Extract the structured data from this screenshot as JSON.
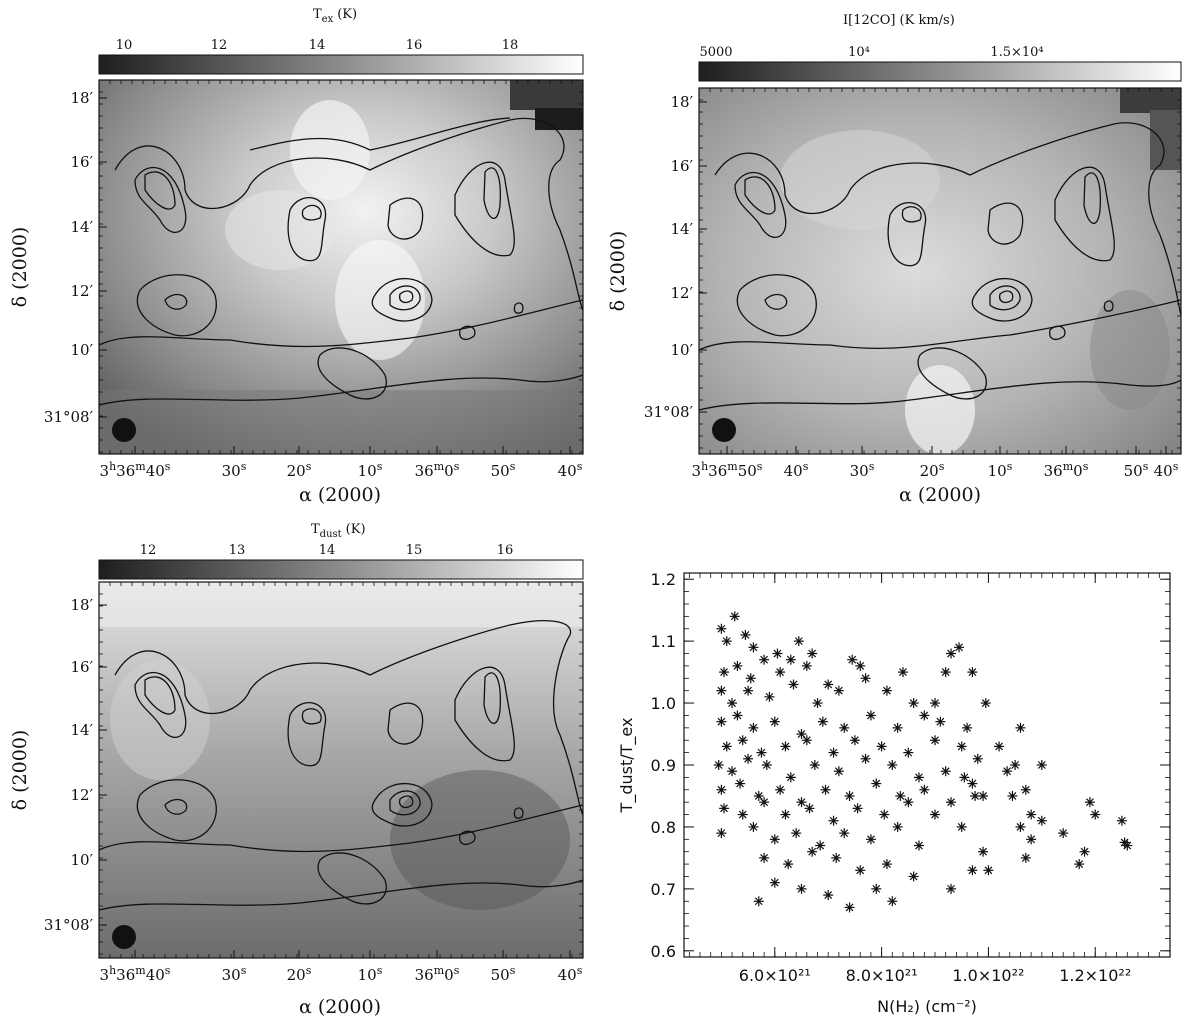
{
  "colors": {
    "ink": "#111111",
    "paper": "#ffffff",
    "map_dark": "#2a2a2a",
    "map_light": "#f4f4f4"
  },
  "panels": [
    {
      "id": "tex",
      "cbar_title": "T",
      "cbar_title_sub": "ex",
      "cbar_unit": "(K)",
      "cbar_ticks": [
        "10",
        "12",
        "14",
        "16",
        "18"
      ],
      "ra_ticks": [
        "3h36m40s",
        "30s",
        "20s",
        "10s",
        "36m0s",
        "50s",
        "40s"
      ],
      "dec_ticks": [
        "18′",
        "16′",
        "14′",
        "12′",
        "10′",
        "31°08′"
      ],
      "xlabel": "α (2000)",
      "ylabel": "δ (2000)"
    },
    {
      "id": "co",
      "cbar_title": "I[12CO] (K km/s)",
      "cbar_ticks": [
        "5000",
        "10⁴",
        "1.5×10⁴"
      ],
      "ra_ticks": [
        "3h36m50s",
        "40s",
        "30s",
        "20s",
        "10s",
        "36m0s",
        "50s",
        "40s"
      ],
      "dec_ticks": [
        "18′",
        "16′",
        "14′",
        "12′",
        "10′",
        "31°08′"
      ],
      "xlabel": "α (2000)",
      "ylabel": "δ (2000)"
    },
    {
      "id": "tdust",
      "cbar_title": "T",
      "cbar_title_sub": "dust",
      "cbar_unit": "(K)",
      "cbar_ticks": [
        "12",
        "13",
        "14",
        "15",
        "16"
      ],
      "ra_ticks": [
        "3h36m40s",
        "30s",
        "20s",
        "10s",
        "36m0s",
        "50s",
        "40s"
      ],
      "dec_ticks": [
        "18′",
        "16′",
        "14′",
        "12′",
        "10′",
        "31°08′"
      ],
      "xlabel": "α (2000)",
      "ylabel": "δ (2000)"
    }
  ],
  "chart_data": {
    "type": "scatter",
    "xlabel": "N(H₂) (cm⁻²)",
    "ylabel": "T_dust/T_ex",
    "xlim": [
      4.3e+21,
      1.34e+22
    ],
    "ylim": [
      0.59,
      1.21
    ],
    "x_tick_values": [
      6e+21,
      8e+21,
      1e+22,
      1.2e+22
    ],
    "x_tick_labels": [
      "6.0×10²¹",
      "8.0×10²¹",
      "1.0×10²²",
      "1.2×10²²"
    ],
    "y_tick_values": [
      0.6,
      0.7,
      0.8,
      0.9,
      1.0,
      1.1,
      1.2
    ],
    "y_tick_labels": [
      "0.6",
      "0.7",
      "0.8",
      "0.9",
      "1.0",
      "1.1",
      "1.2"
    ],
    "marker": "asterisk",
    "points": [
      [
        5e+21,
        1.12
      ],
      [
        5.25e+21,
        1.14
      ],
      [
        5.1e+21,
        1.1
      ],
      [
        5.45e+21,
        1.11
      ],
      [
        5.6e+21,
        1.09
      ],
      [
        6.05e+21,
        1.08
      ],
      [
        6.3e+21,
        1.07
      ],
      [
        6.45e+21,
        1.1
      ],
      [
        6.7e+21,
        1.08
      ],
      [
        5.05e+21,
        1.05
      ],
      [
        5.3e+21,
        1.06
      ],
      [
        5.55e+21,
        1.04
      ],
      [
        5.8e+21,
        1.07
      ],
      [
        6.1e+21,
        1.05
      ],
      [
        6.6e+21,
        1.06
      ],
      [
        7e+21,
        1.03
      ],
      [
        7.45e+21,
        1.07
      ],
      [
        7.6e+21,
        1.06
      ],
      [
        5e+21,
        1.02
      ],
      [
        5.2e+21,
        1.0
      ],
      [
        5.5e+21,
        1.02
      ],
      [
        5.9e+21,
        1.01
      ],
      [
        6.35e+21,
        1.03
      ],
      [
        6.8e+21,
        1.0
      ],
      [
        7.2e+21,
        1.02
      ],
      [
        7.7e+21,
        1.04
      ],
      [
        8.1e+21,
        1.02
      ],
      [
        8.6e+21,
        1.0
      ],
      [
        9e+21,
        1.0
      ],
      [
        9.3e+21,
        1.08
      ],
      [
        9.45e+21,
        1.09
      ],
      [
        9.2e+21,
        1.05
      ],
      [
        9.7e+21,
        1.05
      ],
      [
        9.6e+21,
        0.96
      ],
      [
        9.95e+21,
        1.0
      ],
      [
        8.4e+21,
        1.05
      ],
      [
        5e+21,
        0.97
      ],
      [
        5.3e+21,
        0.98
      ],
      [
        5.6e+21,
        0.96
      ],
      [
        6e+21,
        0.97
      ],
      [
        6.5e+21,
        0.95
      ],
      [
        6.9e+21,
        0.97
      ],
      [
        7.3e+21,
        0.96
      ],
      [
        7.8e+21,
        0.98
      ],
      [
        8.3e+21,
        0.96
      ],
      [
        8.8e+21,
        0.98
      ],
      [
        9.1e+21,
        0.97
      ],
      [
        5.1e+21,
        0.93
      ],
      [
        5.4e+21,
        0.94
      ],
      [
        5.75e+21,
        0.92
      ],
      [
        6.2e+21,
        0.93
      ],
      [
        6.6e+21,
        0.94
      ],
      [
        7.1e+21,
        0.92
      ],
      [
        7.5e+21,
        0.94
      ],
      [
        8e+21,
        0.93
      ],
      [
        8.5e+21,
        0.92
      ],
      [
        9e+21,
        0.94
      ],
      [
        9.5e+21,
        0.93
      ],
      [
        9.8e+21,
        0.91
      ],
      [
        4.95e+21,
        0.9
      ],
      [
        5.2e+21,
        0.89
      ],
      [
        5.5e+21,
        0.91
      ],
      [
        5.85e+21,
        0.9
      ],
      [
        6.3e+21,
        0.88
      ],
      [
        6.75e+21,
        0.9
      ],
      [
        7.2e+21,
        0.89
      ],
      [
        7.7e+21,
        0.91
      ],
      [
        8.2e+21,
        0.9
      ],
      [
        8.7e+21,
        0.88
      ],
      [
        9.2e+21,
        0.89
      ],
      [
        9.7e+21,
        0.87
      ],
      [
        5e+21,
        0.86
      ],
      [
        5.35e+21,
        0.87
      ],
      [
        5.7e+21,
        0.85
      ],
      [
        6.1e+21,
        0.86
      ],
      [
        6.5e+21,
        0.84
      ],
      [
        6.95e+21,
        0.86
      ],
      [
        7.4e+21,
        0.85
      ],
      [
        7.9e+21,
        0.87
      ],
      [
        8.35e+21,
        0.85
      ],
      [
        8.8e+21,
        0.86
      ],
      [
        9.3e+21,
        0.84
      ],
      [
        9.9e+21,
        0.85
      ],
      [
        5.05e+21,
        0.83
      ],
      [
        5.4e+21,
        0.82
      ],
      [
        5.8e+21,
        0.84
      ],
      [
        6.2e+21,
        0.82
      ],
      [
        6.65e+21,
        0.83
      ],
      [
        7.1e+21,
        0.81
      ],
      [
        7.55e+21,
        0.83
      ],
      [
        8.05e+21,
        0.82
      ],
      [
        8.5e+21,
        0.84
      ],
      [
        9e+21,
        0.82
      ],
      [
        9.5e+21,
        0.8
      ],
      [
        5e+21,
        0.79
      ],
      [
        5.6e+21,
        0.8
      ],
      [
        6e+21,
        0.78
      ],
      [
        6.4e+21,
        0.79
      ],
      [
        6.85e+21,
        0.77
      ],
      [
        7.3e+21,
        0.79
      ],
      [
        7.8e+21,
        0.78
      ],
      [
        8.3e+21,
        0.8
      ],
      [
        8.7e+21,
        0.77
      ],
      [
        5.8e+21,
        0.75
      ],
      [
        6.25e+21,
        0.74
      ],
      [
        6.7e+21,
        0.76
      ],
      [
        7.15e+21,
        0.75
      ],
      [
        7.6e+21,
        0.73
      ],
      [
        8.1e+21,
        0.74
      ],
      [
        5.7e+21,
        0.68
      ],
      [
        6e+21,
        0.71
      ],
      [
        6.5e+21,
        0.7
      ],
      [
        7e+21,
        0.69
      ],
      [
        7.4e+21,
        0.67
      ],
      [
        7.9e+21,
        0.7
      ],
      [
        8.2e+21,
        0.68
      ],
      [
        8.6e+21,
        0.72
      ],
      [
        9.3e+21,
        0.7
      ],
      [
        9.7e+21,
        0.73
      ],
      [
        1e+22,
        0.73
      ],
      [
        9.9e+21,
        0.76
      ],
      [
        1.05e+22,
        0.9
      ],
      [
        1.06e+22,
        0.96
      ],
      [
        1.07e+22,
        0.86
      ],
      [
        1.08e+22,
        0.82
      ],
      [
        1.1e+22,
        0.9
      ],
      [
        1.08e+22,
        0.78
      ],
      [
        1.1e+22,
        0.81
      ],
      [
        1.14e+22,
        0.79
      ],
      [
        1.17e+22,
        0.74
      ],
      [
        1.18e+22,
        0.76
      ],
      [
        1.19e+22,
        0.84
      ],
      [
        1.2e+22,
        0.82
      ],
      [
        1.25e+22,
        0.81
      ],
      [
        1.26e+22,
        0.77
      ],
      [
        1.255e+22,
        0.775
      ],
      [
        1.035e+22,
        0.89
      ],
      [
        1.045e+22,
        0.85
      ],
      [
        1.06e+22,
        0.8
      ],
      [
        1.07e+22,
        0.75
      ],
      [
        9.55e+21,
        0.88
      ],
      [
        9.75e+21,
        0.85
      ],
      [
        1.02e+22,
        0.93
      ]
    ]
  }
}
